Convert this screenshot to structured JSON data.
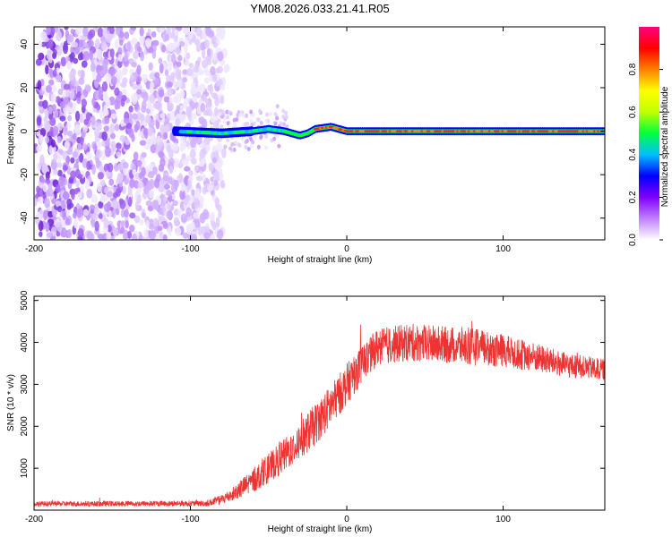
{
  "title": "YM08.2026.033.21.41.R05",
  "chart_data": [
    {
      "type": "heatmap",
      "name": "spectrogram",
      "xlabel": "Height of straight line (km)",
      "ylabel": "Frequency (Hz)",
      "xlim": [
        -200,
        165
      ],
      "ylim": [
        -50,
        48
      ],
      "x_ticks": [
        -200,
        -100,
        0,
        100
      ],
      "y_ticks": [
        -40,
        -20,
        0,
        20,
        40
      ],
      "colorbar": {
        "label": "Normalized spectral amplitude",
        "range": [
          0,
          1
        ],
        "ticks": [
          "0.0",
          "0.2",
          "0.4",
          "0.6",
          "0.8"
        ],
        "tick_values": [
          0.0,
          0.2,
          0.4,
          0.6,
          0.8
        ],
        "colors": [
          "#ffffff",
          "#c080ff",
          "#8000ff",
          "#0000ff",
          "#00c0ff",
          "#00ff40",
          "#c0ff00",
          "#ffff00",
          "#ff8000",
          "#ff0000",
          "#ff0080"
        ]
      },
      "ridge": {
        "description": "Spectral ridge near 0 Hz from about -110 km to the end",
        "points": [
          [
            -110,
            0
          ],
          [
            -80,
            -1
          ],
          [
            -60,
            0
          ],
          [
            -50,
            1
          ],
          [
            -40,
            0
          ],
          [
            -30,
            -2
          ],
          [
            -25,
            -1
          ],
          [
            -20,
            1
          ],
          [
            -10,
            2
          ],
          [
            -5,
            1
          ],
          [
            0,
            0
          ],
          [
            165,
            0
          ]
        ]
      },
      "noise_region": [
        -200,
        -82
      ]
    },
    {
      "type": "line",
      "name": "snr",
      "xlabel": "Height of straight line (km)",
      "ylabel": "SNR (10 * v/v)",
      "xlim": [
        -200,
        165
      ],
      "ylim": [
        0,
        5100
      ],
      "x_ticks": [
        -200,
        -100,
        0,
        100
      ],
      "y_ticks": [
        1000,
        2000,
        3000,
        4000,
        5000
      ],
      "color": "#ee3333",
      "envelope": [
        {
          "x": -200,
          "mean": 150,
          "spread": 60
        },
        {
          "x": -90,
          "mean": 160,
          "spread": 70
        },
        {
          "x": -80,
          "mean": 250,
          "spread": 120
        },
        {
          "x": -70,
          "mean": 450,
          "spread": 200
        },
        {
          "x": -60,
          "mean": 700,
          "spread": 300
        },
        {
          "x": -50,
          "mean": 1000,
          "spread": 350
        },
        {
          "x": -40,
          "mean": 1300,
          "spread": 400
        },
        {
          "x": -30,
          "mean": 1650,
          "spread": 450
        },
        {
          "x": -20,
          "mean": 2050,
          "spread": 500
        },
        {
          "x": -10,
          "mean": 2500,
          "spread": 500
        },
        {
          "x": 0,
          "mean": 3000,
          "spread": 500
        },
        {
          "x": 10,
          "mean": 3500,
          "spread": 450
        },
        {
          "x": 20,
          "mean": 3900,
          "spread": 450
        },
        {
          "x": 40,
          "mean": 4000,
          "spread": 450
        },
        {
          "x": 60,
          "mean": 3950,
          "spread": 450
        },
        {
          "x": 80,
          "mean": 3900,
          "spread": 450
        },
        {
          "x": 100,
          "mean": 3800,
          "spread": 400
        },
        {
          "x": 120,
          "mean": 3650,
          "spread": 350
        },
        {
          "x": 140,
          "mean": 3450,
          "spread": 300
        },
        {
          "x": 165,
          "mean": 3350,
          "spread": 250
        }
      ]
    }
  ]
}
